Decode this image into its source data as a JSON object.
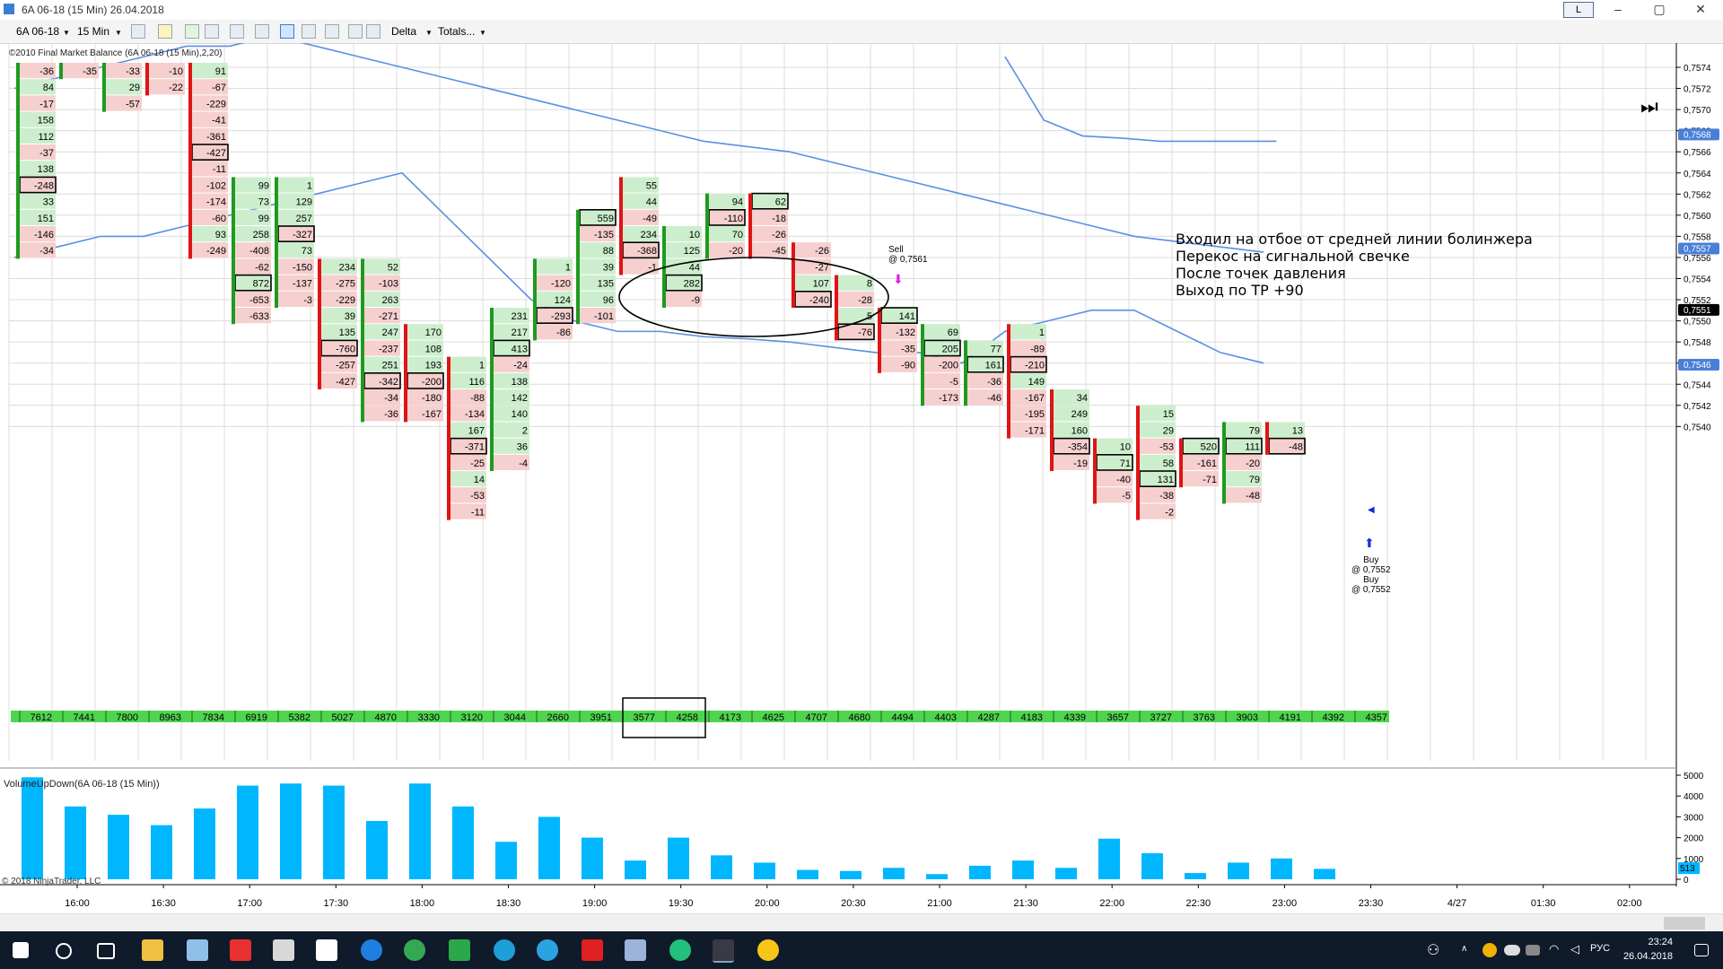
{
  "window": {
    "title": "6A 06-18 (15 Min)  26.04.2018",
    "badge": "L",
    "minimize": "–",
    "maximize": "▢",
    "close": "✕"
  },
  "toolbar": {
    "instrument": "6A 06-18",
    "interval": "15 Min",
    "delta": "Delta",
    "totals": "Totals..."
  },
  "indicator_label": "©2010 Final Market Balance  (6A 06-18 (15 Min),2,20)",
  "volume_label": "VolumeUpDown(6A 06-18 (15 Min))",
  "copyright": "© 2018 NinjaTrader, LLC",
  "annotation": [
    "Входил на отбое от средней линии болинжера",
    "Перекос на сигнальной свечке",
    "После точек давления",
    "Выход по TP +90"
  ],
  "trades": {
    "sell": {
      "label": "Sell",
      "price": "@ 0,7561"
    },
    "buy1": {
      "label": "Buy",
      "price": "@ 0,7552"
    },
    "buy2": {
      "label": "Buy",
      "price": "@ 0,7552"
    }
  },
  "chart_data": {
    "type": "table",
    "subtype": "footprint-delta",
    "price_ticks": [
      "0,7574",
      "0,7572",
      "0,7570",
      "0,7568",
      "0,7566",
      "0,7564",
      "0,7562",
      "0,7560",
      "0,7558",
      "0,7556",
      "0,7554",
      "0,7552",
      "0,7550",
      "0,7548",
      "0,7546",
      "0,7544",
      "0,7542",
      "0,7540"
    ],
    "price_ylim": [
      0.754,
      0.7575
    ],
    "price_markers": [
      {
        "value": "0,7568",
        "price": 0.75676
      },
      {
        "value": "0,7557",
        "price": 0.75568
      },
      {
        "value": "0,7551",
        "price": 0.7551
      },
      {
        "value": "0,7546",
        "price": 0.75458
      }
    ],
    "time_labels": [
      "16:00",
      "16:30",
      "17:00",
      "17:30",
      "18:00",
      "18:30",
      "19:00",
      "19:30",
      "20:00",
      "20:30",
      "21:00",
      "21:30",
      "22:00",
      "22:30",
      "23:00",
      "23:30",
      "4/27",
      "01:30",
      "02:00"
    ],
    "totals": [
      "7612",
      "7441",
      "7800",
      "8963",
      "7834",
      "6919",
      "5382",
      "5027",
      "4870",
      "3330",
      "3120",
      "3044",
      "2660",
      "3951",
      "3577",
      "4258",
      "4173",
      "4625",
      "4707",
      "4680",
      "4494",
      "4403",
      "4287",
      "4183",
      "4339",
      "3657",
      "3727",
      "3763",
      "3903",
      "4191",
      "4392",
      "4357"
    ],
    "columns": [
      {
        "dir": "up",
        "cells": [
          [
            "-36",
            0
          ],
          [
            "84",
            1
          ],
          [
            "-17",
            2
          ],
          [
            "158",
            3
          ],
          [
            "112",
            4
          ],
          [
            "-37",
            5
          ],
          [
            "138",
            6
          ],
          [
            "-248",
            7,
            "box"
          ],
          [
            "33",
            8
          ],
          [
            "151",
            9
          ],
          [
            "-146",
            10
          ],
          [
            "-34",
            11
          ]
        ]
      },
      {
        "dir": "up",
        "cells": [
          [
            "-35",
            0
          ]
        ]
      },
      {
        "dir": "up",
        "cells": [
          [
            "-33",
            0
          ],
          [
            "29",
            1
          ],
          [
            "-57",
            2
          ]
        ]
      },
      {
        "dir": "down",
        "cells": [
          [
            "-10",
            0
          ],
          [
            "-22",
            1
          ]
        ]
      },
      {
        "dir": "down",
        "cells": [
          [
            "91",
            0
          ],
          [
            "-67",
            1
          ],
          [
            "-229",
            2
          ],
          [
            "-41",
            3
          ],
          [
            "-361",
            4
          ],
          [
            "-427",
            5,
            "box"
          ],
          [
            "-11",
            6
          ],
          [
            "-102",
            7
          ],
          [
            "-174",
            8
          ],
          [
            "-60",
            9
          ],
          [
            "93",
            10
          ],
          [
            "-249",
            11
          ]
        ]
      },
      {
        "dir": "up",
        "cells": [
          [
            "99",
            7
          ],
          [
            "73",
            8
          ],
          [
            "99",
            9
          ],
          [
            "258",
            10
          ],
          [
            "-408",
            11
          ],
          [
            "-62",
            12
          ],
          [
            "872",
            13,
            "box"
          ],
          [
            "-653",
            14
          ],
          [
            "-633",
            15
          ]
        ]
      },
      {
        "dir": "up",
        "cells": [
          [
            "1",
            7
          ],
          [
            "129",
            8
          ],
          [
            "257",
            9
          ],
          [
            "-327",
            10,
            "box"
          ],
          [
            "73",
            11
          ],
          [
            "-150",
            12
          ],
          [
            "-137",
            13
          ],
          [
            "-3",
            14
          ]
        ]
      },
      {
        "dir": "down",
        "cells": [
          [
            "234",
            12
          ],
          [
            "-275",
            13
          ],
          [
            "-229",
            14
          ],
          [
            "39",
            15
          ],
          [
            "135",
            16
          ],
          [
            "-760",
            17,
            "box"
          ],
          [
            "-257",
            18
          ],
          [
            "-427",
            19
          ]
        ]
      },
      {
        "dir": "up",
        "cells": [
          [
            "52",
            12
          ],
          [
            "-103",
            13
          ],
          [
            "263",
            14
          ],
          [
            "-271",
            15
          ],
          [
            "247",
            16
          ],
          [
            "-237",
            17
          ],
          [
            "251",
            18
          ],
          [
            "-342",
            19,
            "box"
          ],
          [
            "-34",
            20
          ],
          [
            "-36",
            21
          ]
        ]
      },
      {
        "dir": "down",
        "cells": [
          [
            "170",
            16
          ],
          [
            "108",
            17
          ],
          [
            "193",
            18
          ],
          [
            "-200",
            19,
            "box"
          ],
          [
            "-180",
            20
          ],
          [
            "-167",
            21
          ]
        ]
      },
      {
        "dir": "down",
        "cells": [
          [
            "1",
            18
          ],
          [
            "116",
            19
          ],
          [
            "-88",
            20
          ],
          [
            "-134",
            21
          ],
          [
            "167",
            22
          ],
          [
            "-371",
            23,
            "box"
          ],
          [
            "-25",
            24
          ],
          [
            "14",
            25
          ],
          [
            "-53",
            26
          ],
          [
            "-11",
            27
          ]
        ]
      },
      {
        "dir": "up",
        "cells": [
          [
            "231",
            15
          ],
          [
            "217",
            16
          ],
          [
            "413",
            17,
            "box"
          ],
          [
            "-24",
            18
          ],
          [
            "138",
            19
          ],
          [
            "142",
            20
          ],
          [
            "140",
            21
          ],
          [
            "2",
            22
          ],
          [
            "36",
            23
          ],
          [
            "-4",
            24
          ]
        ]
      },
      {
        "dir": "up",
        "cells": [
          [
            "1",
            12
          ],
          [
            "-120",
            13
          ],
          [
            "124",
            14
          ],
          [
            "-293",
            15,
            "box"
          ],
          [
            "-86",
            16
          ]
        ]
      },
      {
        "dir": "up",
        "cells": [
          [
            "559",
            9,
            "box"
          ],
          [
            "-135",
            10
          ],
          [
            "88",
            11
          ],
          [
            "39",
            12
          ],
          [
            "135",
            13
          ],
          [
            "96",
            14
          ],
          [
            "-101",
            15
          ]
        ]
      },
      {
        "dir": "down",
        "cells": [
          [
            "55",
            7
          ],
          [
            "44",
            8
          ],
          [
            "-49",
            9
          ],
          [
            "234",
            10
          ],
          [
            "-368",
            11,
            "box"
          ],
          [
            "-1",
            12
          ]
        ]
      },
      {
        "dir": "up",
        "cells": [
          [
            "10",
            10
          ],
          [
            "125",
            11
          ],
          [
            "44",
            12
          ],
          [
            "282",
            13,
            "box"
          ],
          [
            "-9",
            14
          ]
        ]
      },
      {
        "dir": "up",
        "cells": [
          [
            "94",
            8
          ],
          [
            "-110",
            9,
            "box"
          ],
          [
            "70",
            10
          ],
          [
            "-20",
            11
          ]
        ]
      },
      {
        "dir": "down",
        "cells": [
          [
            "62",
            8,
            "box"
          ],
          [
            "-18",
            9
          ],
          [
            "-26",
            10
          ],
          [
            "-45",
            11
          ]
        ]
      },
      {
        "dir": "down",
        "cells": [
          [
            "-26",
            11
          ],
          [
            "-27",
            12
          ],
          [
            "107",
            13
          ],
          [
            "-240",
            14,
            "box"
          ]
        ]
      },
      {
        "dir": "down",
        "cells": [
          [
            "8",
            13
          ],
          [
            "-28",
            14
          ],
          [
            "5",
            15
          ],
          [
            "-76",
            16,
            "box"
          ]
        ]
      },
      {
        "dir": "down",
        "cells": [
          [
            "141",
            15,
            "box"
          ],
          [
            "-132",
            16
          ],
          [
            "-35",
            17
          ],
          [
            "-90",
            18
          ]
        ]
      },
      {
        "dir": "up",
        "cells": [
          [
            "69",
            16
          ],
          [
            "205",
            17,
            "box"
          ],
          [
            "-200",
            18
          ],
          [
            "-5",
            19
          ],
          [
            "-173",
            20
          ]
        ]
      },
      {
        "dir": "up",
        "cells": [
          [
            "77",
            17
          ],
          [
            "161",
            18,
            "box"
          ],
          [
            "-36",
            19
          ],
          [
            "-46",
            20
          ]
        ]
      },
      {
        "dir": "down",
        "cells": [
          [
            "1",
            16
          ],
          [
            "-89",
            17
          ],
          [
            "-210",
            18,
            "box"
          ],
          [
            "149",
            19
          ],
          [
            "-167",
            20
          ],
          [
            "-195",
            21
          ],
          [
            "-171",
            22
          ]
        ]
      },
      {
        "dir": "down",
        "cells": [
          [
            "34",
            20
          ],
          [
            "249",
            21
          ],
          [
            "160",
            22
          ],
          [
            "-354",
            23,
            "box"
          ],
          [
            "-19",
            24
          ]
        ]
      },
      {
        "dir": "down",
        "cells": [
          [
            "10",
            23
          ],
          [
            "71",
            24,
            "box"
          ],
          [
            "-40",
            25
          ],
          [
            "-5",
            26
          ]
        ]
      },
      {
        "dir": "down",
        "cells": [
          [
            "15",
            21
          ],
          [
            "29",
            22
          ],
          [
            "-53",
            23
          ],
          [
            "58",
            24
          ],
          [
            "131",
            25,
            "box"
          ],
          [
            "-38",
            26
          ],
          [
            "-2",
            27
          ]
        ]
      },
      {
        "dir": "down",
        "cells": [
          [
            "520",
            23,
            "box"
          ],
          [
            "-161",
            24
          ],
          [
            "-71",
            25
          ]
        ]
      },
      {
        "dir": "up",
        "cells": [
          [
            "79",
            22
          ],
          [
            "111",
            23,
            "box"
          ],
          [
            "-20",
            24
          ],
          [
            "79",
            25
          ],
          [
            "-48",
            26
          ]
        ]
      },
      {
        "dir": "down",
        "cells": [
          [
            "13",
            22
          ],
          [
            "-48",
            23,
            "box"
          ]
        ]
      }
    ],
    "bollinger_upper": [
      0.7572,
      0.7573,
      0.7574,
      0.7575,
      0.7576,
      0.7576,
      0.7577,
      0.7576,
      0.7575,
      0.7574,
      0.7573,
      0.7572,
      0.7571,
      0.757,
      0.7569,
      0.7568,
      0.7567,
      0.75665,
      0.7566,
      0.7565,
      0.7564,
      0.7563,
      0.7562,
      0.7561,
      0.756,
      0.7559,
      0.7558,
      0.75575,
      0.7557,
      0.75565
    ],
    "bollinger_lower": [
      0.7556,
      0.7557,
      0.7558,
      0.7558,
      0.7559,
      0.756,
      0.7561,
      0.7562,
      0.7563,
      0.7564,
      0.756,
      0.7556,
      0.7552,
      0.755,
      0.7549,
      0.7549,
      0.75485,
      0.75483,
      0.7548,
      0.75475,
      0.7547,
      0.7547,
      0.7546,
      0.7549,
      0.755,
      0.7551,
      0.7551,
      0.7549,
      0.7547,
      0.7546
    ],
    "bollinger_far_upper": [
      0.7575,
      0.7569,
      0.75675,
      0.75673,
      0.7567,
      0.7567,
      0.7567,
      0.7567
    ],
    "volume": {
      "ylabel_ticks": [
        "5000",
        "4000",
        "3000",
        "2000",
        "1000",
        "0"
      ],
      "ylim": [
        0,
        5000
      ],
      "last_value": "513",
      "values": [
        4900,
        3500,
        3100,
        2600,
        3400,
        4500,
        4600,
        4500,
        2800,
        4600,
        3500,
        1800,
        3000,
        2000,
        900,
        2000,
        1150,
        800,
        450,
        400,
        550,
        250,
        650,
        900,
        550,
        1950,
        1250,
        300,
        800,
        1000,
        500
      ]
    }
  },
  "colors": {
    "grid": "#dcdcdc",
    "up_bar": "#1f9a1f",
    "down_bar": "#e01414",
    "positive_cell": "#cdeecd",
    "negative_cell": "#f6cfcf",
    "bollinger": "#5b8fe3",
    "volume": "#00b7ff",
    "totals_bar": "#4fd44f"
  }
}
